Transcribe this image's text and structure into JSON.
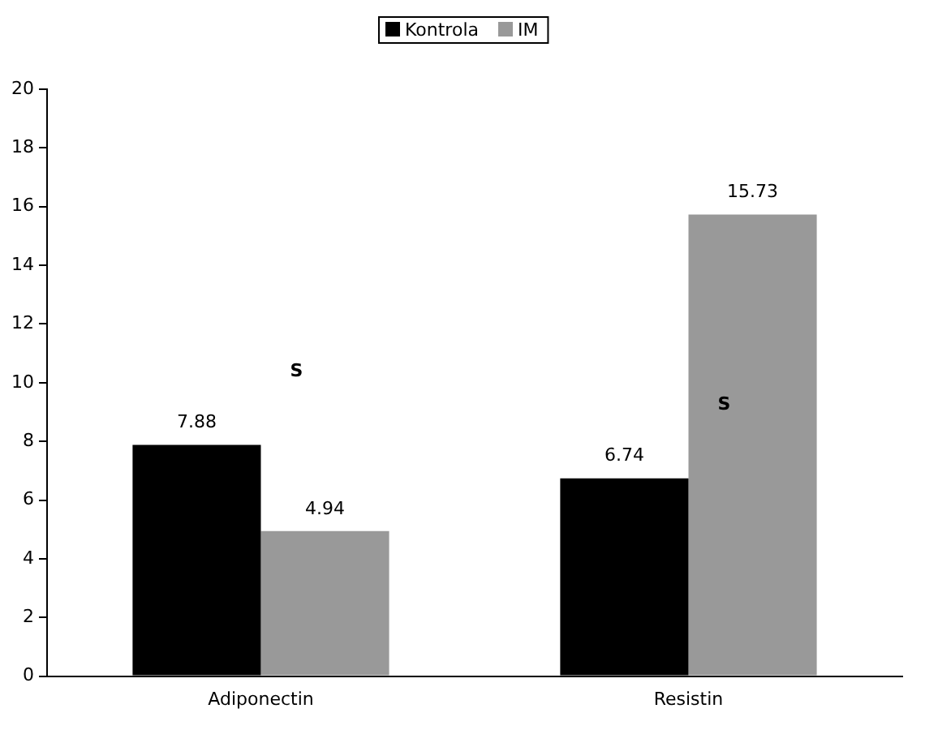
{
  "chart_data": {
    "type": "bar",
    "categories": [
      "Adiponectin",
      "Resistin"
    ],
    "series": [
      {
        "name": "Kontrola",
        "color": "#000000",
        "values": [
          7.88,
          6.74
        ]
      },
      {
        "name": "IM",
        "color": "#999999",
        "values": [
          4.94,
          15.73
        ]
      }
    ],
    "ylim": [
      0,
      20
    ],
    "yticks": [
      0,
      2,
      4,
      6,
      8,
      10,
      12,
      14,
      16,
      18,
      20
    ],
    "grid": false,
    "legend": "top",
    "data_labels": true,
    "annotations": [
      "S",
      "S"
    ]
  }
}
